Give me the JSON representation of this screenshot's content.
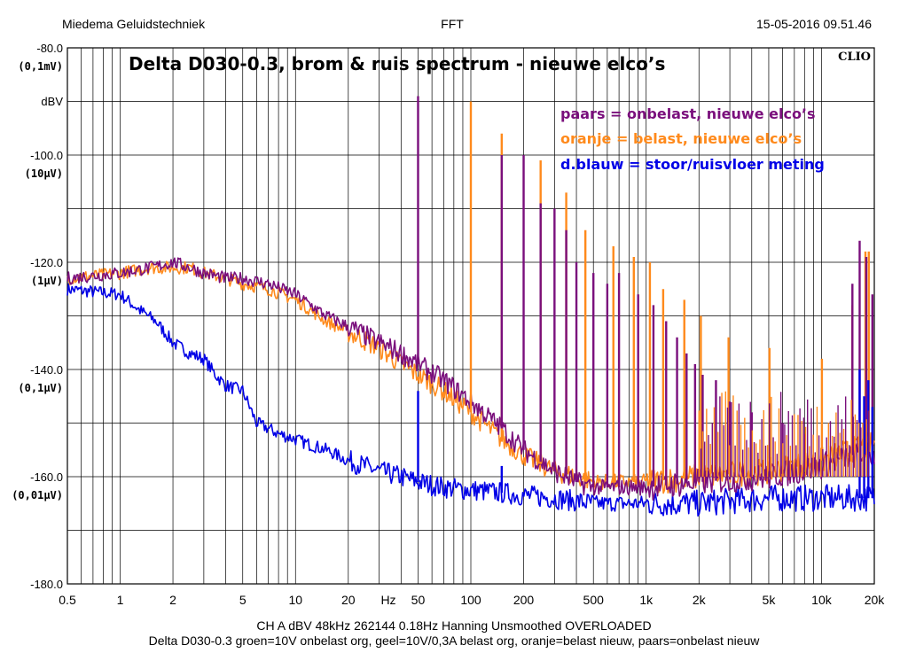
{
  "header": {
    "left": "Miedema Geluidstechniek",
    "center": "FFT",
    "right": "15-05-2016 09.51.46"
  },
  "brand": "CLIO",
  "colors": {
    "purple": "#7a0f7c",
    "orange": "#ff8a1c",
    "blue": "#0000e6"
  },
  "footer": {
    "line1": "CH A   dBV   48kHz   262144   0.18Hz   Hanning   Unsmoothed   OVERLOADED",
    "line2": "Delta D030-0.3  groen=10V onbelast org, geel=10V/0,3A belast org,  oranje=belast nieuw,  paars=onbelast nieuw"
  },
  "chart_data": {
    "type": "line",
    "title": "Delta D030-0.3, brom & ruis spectrum  -  nieuwe elco’s",
    "ylabel": "dBV",
    "xlabel": "Hz",
    "x_scale": "log",
    "xlim": [
      0.5,
      20000
    ],
    "ylim": [
      -180,
      -80
    ],
    "x_ticks": [
      {
        "v": 0.5,
        "label": "0.5"
      },
      {
        "v": 1,
        "label": "1"
      },
      {
        "v": 2,
        "label": "2"
      },
      {
        "v": 5,
        "label": "5"
      },
      {
        "v": 10,
        "label": "10"
      },
      {
        "v": 20,
        "label": "20"
      },
      {
        "v": 50,
        "label": "50"
      },
      {
        "v": 100,
        "label": "100"
      },
      {
        "v": 200,
        "label": "200"
      },
      {
        "v": 500,
        "label": "500"
      },
      {
        "v": 1000,
        "label": "1k"
      },
      {
        "v": 2000,
        "label": "2k"
      },
      {
        "v": 5000,
        "label": "5k"
      },
      {
        "v": 10000,
        "label": "10k"
      },
      {
        "v": 20000,
        "label": "20k"
      }
    ],
    "x_unit_label": "Hz",
    "y_ticks": [
      {
        "v": -80,
        "label": "-80.0",
        "sub": "(0,1mV)"
      },
      {
        "v": -100,
        "label": "-100.0",
        "sub": "(10µV)"
      },
      {
        "v": -120,
        "label": "-120.0",
        "sub": "(1µV)"
      },
      {
        "v": -140,
        "label": "-140.0",
        "sub": "(0,1µV)"
      },
      {
        "v": -160,
        "label": "-160.0",
        "sub": "(0,01µV)"
      },
      {
        "v": -180,
        "label": "-180.0",
        "sub": ""
      }
    ],
    "legend": [
      {
        "text": "paars = onbelast, nieuwe elco’s",
        "color": "#7a0f7c"
      },
      {
        "text": "oranje = belast, nieuwe elco’s",
        "color": "#ff8a1c"
      },
      {
        "text": "d.blauw = stoor/ruisvloer meting",
        "color": "#0000e6"
      }
    ],
    "grid": true,
    "series": [
      {
        "name": "d.blauw",
        "color": "#0000e6",
        "x": [
          0.5,
          0.7,
          1,
          1.3,
          1.6,
          2,
          2.5,
          3,
          3.5,
          4,
          5,
          6,
          7,
          8,
          10,
          12,
          15,
          20,
          30,
          40,
          50,
          70,
          100,
          150,
          200,
          300,
          500,
          1000,
          2000,
          5000,
          10000,
          20000
        ],
        "y": [
          -125,
          -125.5,
          -126,
          -129,
          -131,
          -135,
          -137,
          -138,
          -141,
          -143,
          -144,
          -150,
          -151,
          -152,
          -153,
          -154,
          -155,
          -157,
          -159,
          -160,
          -161,
          -162,
          -162.5,
          -163,
          -163.5,
          -164,
          -165,
          -165,
          -165,
          -164,
          -164,
          -164
        ]
      },
      {
        "name": "oranje",
        "color": "#ff8a1c",
        "x": [
          0.5,
          1,
          1.5,
          2,
          2.5,
          3,
          4,
          5,
          7,
          10,
          15,
          20,
          30,
          40,
          50,
          70,
          100,
          150,
          200,
          300,
          400,
          500,
          700,
          1000,
          2000,
          5000,
          10000,
          15000,
          20000
        ],
        "y": [
          -123,
          -122,
          -121,
          -121,
          -121,
          -122,
          -123,
          -124,
          -125,
          -127,
          -131,
          -133,
          -136,
          -139,
          -141,
          -144,
          -148,
          -153,
          -156,
          -159,
          -160,
          -161,
          -161,
          -161,
          -160,
          -159,
          -157,
          -155,
          -154
        ]
      },
      {
        "name": "paars",
        "color": "#7a0f7c",
        "x": [
          0.5,
          1,
          1.5,
          2,
          2.5,
          3,
          4,
          5,
          7,
          10,
          15,
          20,
          30,
          40,
          50,
          70,
          100,
          150,
          200,
          300,
          400,
          500,
          700,
          1000,
          2000,
          5000,
          10000,
          15000,
          20000
        ],
        "y": [
          -123,
          -122,
          -121,
          -120,
          -121,
          -122,
          -123,
          -123,
          -124,
          -126,
          -130,
          -132,
          -135,
          -137,
          -139,
          -142,
          -146,
          -151,
          -155,
          -159,
          -161,
          -162,
          -162,
          -162,
          -161,
          -160,
          -158,
          -156,
          -156
        ]
      }
    ],
    "peaks": [
      {
        "series": "oranje",
        "x": [
          100,
          150,
          250,
          350,
          450,
          650,
          850,
          1050,
          1250,
          1650,
          2050,
          2950,
          5050,
          10050,
          15000,
          17800,
          18600
        ],
        "y": [
          -90,
          -96,
          -101,
          -107,
          -114,
          -117,
          -119,
          -120,
          -125,
          -127,
          -130,
          -134,
          -136,
          -138,
          -128,
          -118,
          -118
        ]
      },
      {
        "series": "paars",
        "x": [
          50,
          150,
          200,
          250,
          300,
          350,
          400,
          500,
          600,
          700,
          900,
          1100,
          1300,
          1500,
          1700,
          1900,
          2100,
          2500,
          3000,
          4000,
          6000,
          8000,
          15000,
          16500,
          18000,
          19500
        ],
        "y": [
          -89,
          -100,
          -100,
          -109,
          -110,
          -114,
          -120,
          -122,
          -124,
          -122,
          -126,
          -128,
          -131,
          -134,
          -137,
          -139,
          -141,
          -142,
          -146,
          -148,
          -150,
          -152,
          -124,
          -116,
          -119,
          -126
        ]
      },
      {
        "series": "d.blauw",
        "x": [
          50,
          150,
          16500,
          17500,
          18500,
          19500
        ],
        "y": [
          -144,
          -158,
          -140,
          -145,
          -142,
          -147
        ]
      }
    ]
  }
}
